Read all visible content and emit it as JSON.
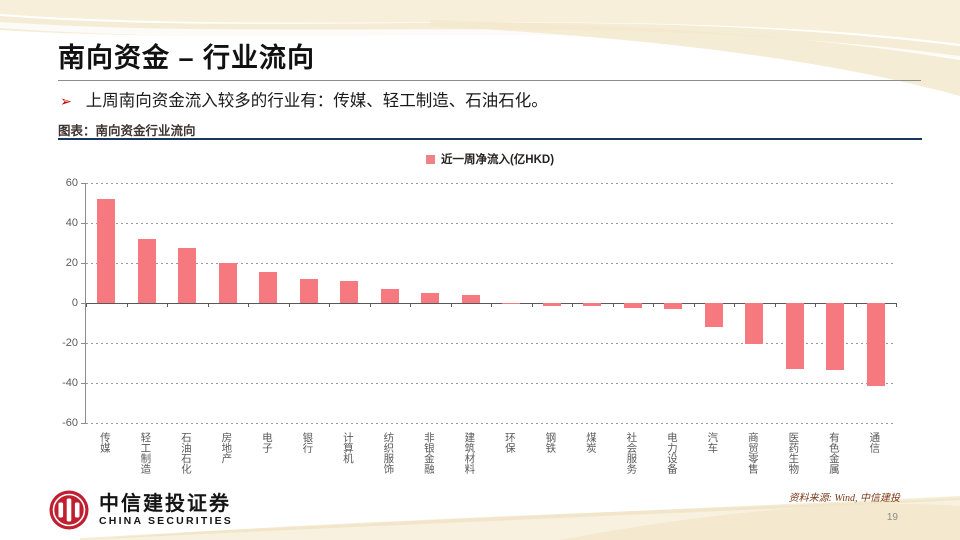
{
  "slide": {
    "title": "南向资金 – 行业流向",
    "bullet_marker": "➢",
    "bullet": "上周南向资金流入较多的行业有：传媒、轻工制造、石油石化。",
    "chart_caption": "图表：南向资金行业流向",
    "source": "资料来源: Wind, 中信建投",
    "page_number": "19",
    "logo": {
      "cn": "中信建投证券",
      "en": "CHINA SECURITIES"
    }
  },
  "colors": {
    "bar": "#f5797e",
    "legend_swatch": "#ef8287",
    "accent_line_navy": "#17375e",
    "bullet_arrow": "#c00000",
    "logo_red": "#c01f2f",
    "decor_cream": "#f5ecd3"
  },
  "chart_data": {
    "type": "bar",
    "title": "",
    "legend": [
      "近一周净流入(亿HKD)"
    ],
    "legend_position": "top-center",
    "xlabel": "",
    "ylabel": "",
    "ylim": [
      -60,
      60
    ],
    "yticks": [
      60,
      40,
      20,
      0,
      -20,
      -40,
      -60
    ],
    "grid": "horizontal-dashed",
    "categories": [
      "传媒",
      "轻工制造",
      "石油石化",
      "房地产",
      "电子",
      "银行",
      "计算机",
      "纺织服饰",
      "非银金融",
      "建筑材料",
      "环保",
      "钢铁",
      "煤炭",
      "社会服务",
      "电力设备",
      "汽车",
      "商贸零售",
      "医药生物",
      "有色金属",
      "通信"
    ],
    "values": [
      52,
      32,
      27.5,
      20,
      15.5,
      12,
      11,
      7,
      5,
      4,
      -0.5,
      -1.5,
      -1.5,
      -2.5,
      -3,
      -12,
      -20.5,
      -33,
      -33.5,
      -41.5
    ]
  }
}
